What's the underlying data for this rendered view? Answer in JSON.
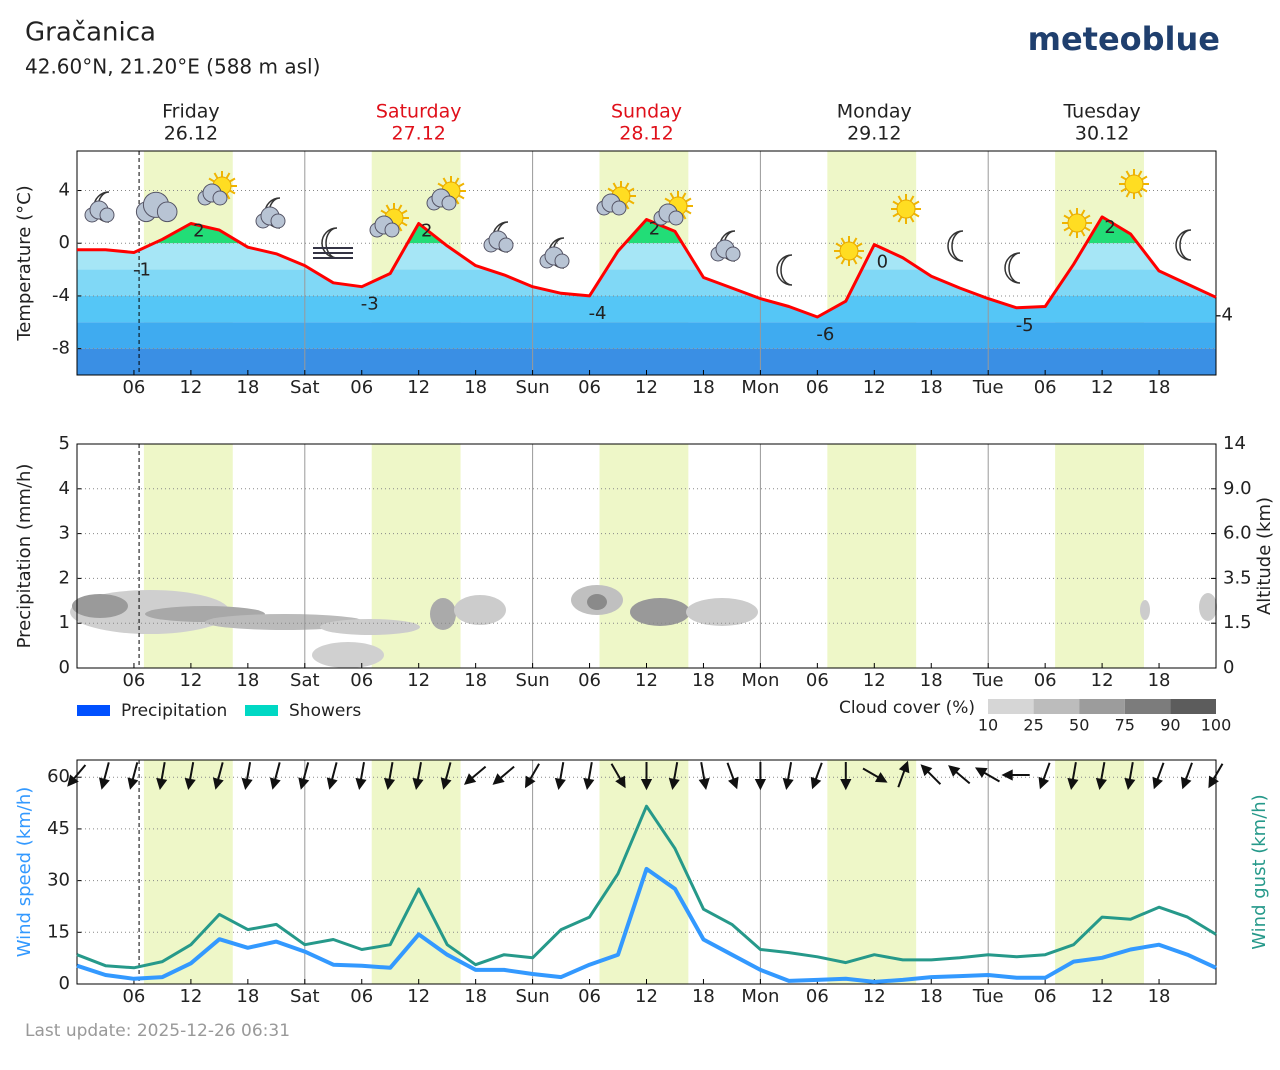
{
  "header": {
    "title": "Gračanica",
    "subtitle": "42.60°N, 21.20°E (588 m asl)",
    "logo": "meteoblue",
    "footer": "Last update: 2025-12-26 06:31"
  },
  "chart_data": [
    {
      "type": "line",
      "ylabel": "Temperature (°C)",
      "days": [
        {
          "name": "Friday",
          "date": "26.12",
          "color": "#222222"
        },
        {
          "name": "Saturday",
          "date": "27.12",
          "color": "#e0101a"
        },
        {
          "name": "Sunday",
          "date": "28.12",
          "color": "#e0101a"
        },
        {
          "name": "Monday",
          "date": "29.12",
          "color": "#222222"
        },
        {
          "name": "Tuesday",
          "date": "30.12",
          "color": "#222222"
        }
      ],
      "categories": [
        null,
        null,
        "06",
        null,
        "12",
        null,
        "18",
        null,
        "Sat",
        null,
        "06",
        null,
        "12",
        null,
        "18",
        null,
        "Sun",
        null,
        "06",
        null,
        "12",
        null,
        "18",
        null,
        "Mon",
        null,
        "06",
        null,
        "12",
        null,
        "18",
        null,
        "Tue",
        null,
        "06",
        null,
        "12",
        null,
        "18",
        null,
        null
      ],
      "values": [
        -0.5,
        -0.5,
        -0.7,
        0.3,
        1.5,
        1.0,
        -0.3,
        -0.8,
        -1.7,
        -3.0,
        -3.3,
        -2.3,
        1.5,
        -0.2,
        -1.7,
        -2.4,
        -3.3,
        -3.8,
        -4.0,
        -0.6,
        1.8,
        0.9,
        -2.6,
        -3.4,
        -4.2,
        -4.8,
        -5.6,
        -4.4,
        -0.1,
        -1.1,
        -2.5,
        -3.4,
        -4.2,
        -4.9,
        -4.8,
        -1.6,
        2.0,
        0.7,
        -2.1,
        -3.1,
        -4.1
      ],
      "value_labels": [
        null,
        null,
        "-1",
        null,
        "2",
        null,
        null,
        null,
        null,
        null,
        "-3",
        null,
        "2",
        null,
        null,
        null,
        null,
        null,
        "-4",
        null,
        "2",
        null,
        null,
        null,
        null,
        null,
        "-6",
        null,
        "0",
        null,
        null,
        null,
        null,
        "-5",
        null,
        null,
        "2",
        null,
        null,
        null,
        "-4"
      ],
      "color": "#ff0000",
      "fill_colors": {
        "above": "#22dd77",
        "below": [
          "#a6e6f6",
          "#80d8f6",
          "#55c6f6",
          "#3fabf0",
          "#3a8fe4"
        ]
      },
      "ylim": [
        -10,
        7
      ],
      "yticks": [
        -8,
        -4,
        0,
        4
      ],
      "grid": true
    },
    {
      "type": "bar",
      "ylabel": "Precipitation (mm/h)",
      "y2label": "Altitude (km)",
      "categories": [
        null,
        null,
        "06",
        null,
        "12",
        null,
        "18",
        null,
        "Sat",
        null,
        "06",
        null,
        "12",
        null,
        "18",
        null,
        "Sun",
        null,
        "06",
        null,
        "12",
        null,
        "18",
        null,
        "Mon",
        null,
        "06",
        null,
        "12",
        null,
        "18",
        null,
        "Tue",
        null,
        "06",
        null,
        "12",
        null,
        "18",
        null,
        null
      ],
      "series": [
        {
          "name": "Precipitation",
          "color": "#0050ff",
          "values": [
            0,
            0,
            0,
            0,
            0,
            0,
            0,
            0,
            0,
            0,
            0,
            0,
            0,
            0,
            0,
            0,
            0,
            0,
            0,
            0,
            0,
            0,
            0,
            0,
            0,
            0,
            0,
            0,
            0,
            0,
            0,
            0,
            0,
            0,
            0,
            0,
            0,
            0,
            0,
            0,
            0
          ]
        },
        {
          "name": "Showers",
          "color": "#00d8c4",
          "values": [
            0,
            0,
            0,
            0,
            0,
            0,
            0,
            0,
            0,
            0,
            0,
            0,
            0,
            0,
            0,
            0,
            0,
            0,
            0,
            0,
            0,
            0,
            0,
            0,
            0,
            0,
            0,
            0,
            0,
            0,
            0,
            0,
            0,
            0,
            0,
            0,
            0,
            0,
            0,
            0,
            0
          ]
        }
      ],
      "ylim": [
        0,
        5
      ],
      "yticks": [
        0,
        1,
        2,
        3,
        4,
        5
      ],
      "y2lim": [
        0,
        14
      ],
      "y2ticks": [
        0,
        1.5,
        3.5,
        {
          "value": 6,
          "label": "6.0"
        },
        {
          "value": 9,
          "label": "9.0"
        },
        14
      ],
      "cloud_cover": {
        "title": "Cloud cover (%)",
        "ticks": [
          10,
          25,
          50,
          75,
          90,
          100
        ],
        "colors": [
          "#d6d6d6",
          "#bcbcbc",
          "#9c9c9c",
          "#7c7c7c",
          "#5c5c5c"
        ]
      },
      "grid": true
    },
    {
      "type": "line",
      "ylabel": "Wind speed (km/h)",
      "y2label": "Wind gust (km/h)",
      "categories": [
        null,
        null,
        "06",
        null,
        "12",
        null,
        "18",
        null,
        "Sat",
        null,
        "06",
        null,
        "12",
        null,
        "18",
        null,
        "Sun",
        null,
        "06",
        null,
        "12",
        null,
        "18",
        null,
        "Mon",
        null,
        "06",
        null,
        "12",
        null,
        "18",
        null,
        "Tue",
        null,
        "06",
        null,
        "12",
        null,
        "18",
        null,
        null
      ],
      "series": [
        {
          "name": "Wind speed",
          "color": "#3399ff",
          "values": [
            5.3,
            2.6,
            1.5,
            2,
            6,
            13,
            10.5,
            12.3,
            9.4,
            5.6,
            5.3,
            4.7,
            14.4,
            8.5,
            4.1,
            4.1,
            2.9,
            2,
            5.6,
            8.5,
            33.4,
            27.6,
            12.9,
            8.5,
            4.1,
            0.9,
            1.2,
            1.5,
            0.6,
            1.2,
            2,
            2.3,
            2.6,
            1.8,
            1.8,
            6.5,
            7.6,
            10,
            11.4,
            8.5,
            4.7
          ]
        },
        {
          "name": "Wind gust",
          "color": "#26998a",
          "values": [
            8.5,
            5.3,
            4.7,
            6.5,
            11.4,
            20.2,
            15.8,
            17.3,
            11.4,
            12.9,
            10,
            11.4,
            27.6,
            11.4,
            5.6,
            8.5,
            7.6,
            15.8,
            19.4,
            32,
            51.6,
            39.3,
            21.7,
            17.3,
            10,
            9.1,
            7.9,
            6.2,
            8.5,
            7,
            7,
            7.6,
            8.5,
            7.9,
            8.5,
            11.4,
            19.4,
            18.8,
            22.3,
            19.4,
            14.4
          ]
        }
      ],
      "wind_direction": [
        40,
        15,
        15,
        10,
        10,
        15,
        10,
        15,
        15,
        15,
        10,
        10,
        10,
        15,
        50,
        50,
        30,
        10,
        10,
        330,
        0,
        10,
        350,
        340,
        0,
        10,
        20,
        0,
        300,
        200,
        135,
        130,
        120,
        90,
        20,
        10,
        10,
        10,
        20,
        20,
        30
      ],
      "ylim": [
        0,
        65
      ],
      "yticks": [
        0,
        15,
        30,
        45,
        60
      ],
      "grid": true
    }
  ]
}
